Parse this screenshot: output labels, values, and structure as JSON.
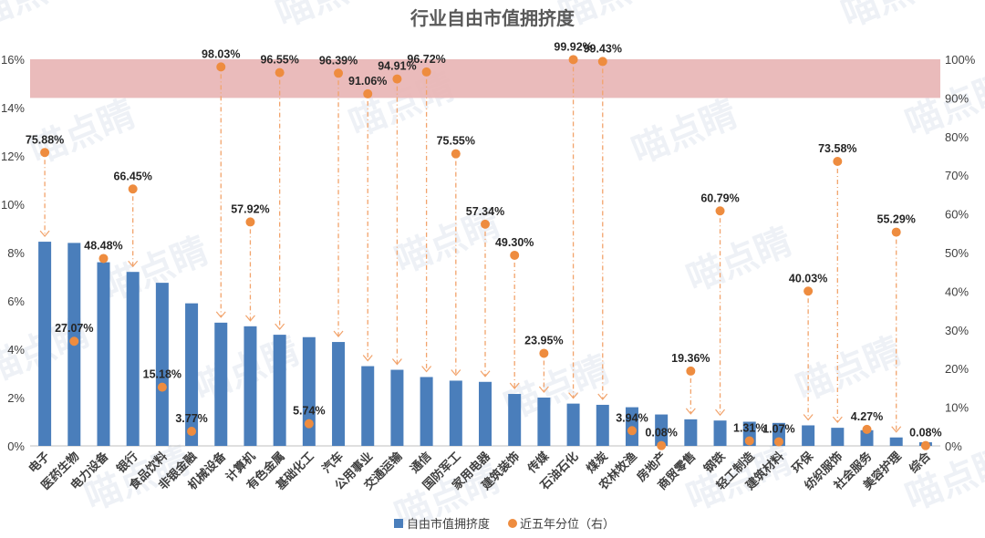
{
  "chart_data": {
    "type": "bar",
    "title": "行业自由市值拥挤度",
    "categories": [
      "电子",
      "医药生物",
      "电力设备",
      "银行",
      "食品饮料",
      "非银金融",
      "机械设备",
      "计算机",
      "有色金属",
      "基础化工",
      "汽车",
      "公用事业",
      "交通运输",
      "通信",
      "国防军工",
      "家用电器",
      "建筑装饰",
      "传媒",
      "石油石化",
      "煤炭",
      "农林牧渔",
      "房地产",
      "商贸零售",
      "钢铁",
      "轻工制造",
      "建筑材料",
      "环保",
      "纺织服饰",
      "社会服务",
      "美容护理",
      "综合"
    ],
    "series": [
      {
        "name": "自由市值拥挤度",
        "axis": "left",
        "type": "bar",
        "color": "#4a7ebb",
        "values": [
          8.45,
          8.4,
          7.6,
          7.2,
          6.75,
          5.9,
          5.1,
          4.95,
          4.6,
          4.5,
          4.3,
          3.3,
          3.15,
          2.85,
          2.7,
          2.65,
          2.15,
          2.0,
          1.75,
          1.7,
          1.6,
          1.3,
          1.1,
          1.05,
          1.0,
          0.95,
          0.85,
          0.75,
          0.65,
          0.35,
          0.15
        ]
      },
      {
        "name": "近五年分位（右）",
        "axis": "right",
        "type": "scatter",
        "color": "#ee8c3f",
        "values": [
          75.88,
          27.07,
          48.48,
          66.45,
          15.18,
          3.77,
          98.03,
          57.92,
          96.55,
          5.74,
          96.39,
          91.06,
          94.91,
          96.72,
          75.55,
          57.34,
          49.3,
          23.95,
          99.92,
          99.43,
          3.94,
          0.08,
          19.36,
          60.79,
          1.31,
          1.07,
          40.03,
          73.58,
          4.27,
          55.29,
          0.08
        ],
        "labels": [
          "75.88%",
          "27.07%",
          "48.48%",
          "66.45%",
          "15.18%",
          "3.77%",
          "98.03%",
          "57.92%",
          "96.55%",
          "5.74%",
          "96.39%",
          "91.06%",
          "94.91%",
          "96.72%",
          "75.55%",
          "57.34%",
          "49.30%",
          "23.95%",
          "99.92%",
          "99.43%",
          "3.94%",
          "0.08%",
          "19.36%",
          "60.79%",
          "1.31%",
          "1.07%",
          "40.03%",
          "73.58%",
          "4.27%",
          "55.29%",
          "0.08%"
        ]
      }
    ],
    "y_left": {
      "range": [
        0,
        16
      ],
      "ticks": [
        "0%",
        "2%",
        "4%",
        "6%",
        "8%",
        "10%",
        "12%",
        "14%",
        "16%"
      ]
    },
    "y_right": {
      "range": [
        0,
        100
      ],
      "ticks": [
        "0%",
        "10%",
        "20%",
        "30%",
        "40%",
        "50%",
        "60%",
        "70%",
        "80%",
        "90%",
        "100%"
      ]
    },
    "highlight_band": {
      "axis": "right",
      "from": 90,
      "to": 100,
      "color": "#e8b4b4"
    },
    "legend": {
      "position": "bottom",
      "items": [
        "自由市值拥挤度",
        "近五年分位（右）"
      ]
    },
    "grid": false
  },
  "watermark": {
    "text": "喵点睛"
  }
}
